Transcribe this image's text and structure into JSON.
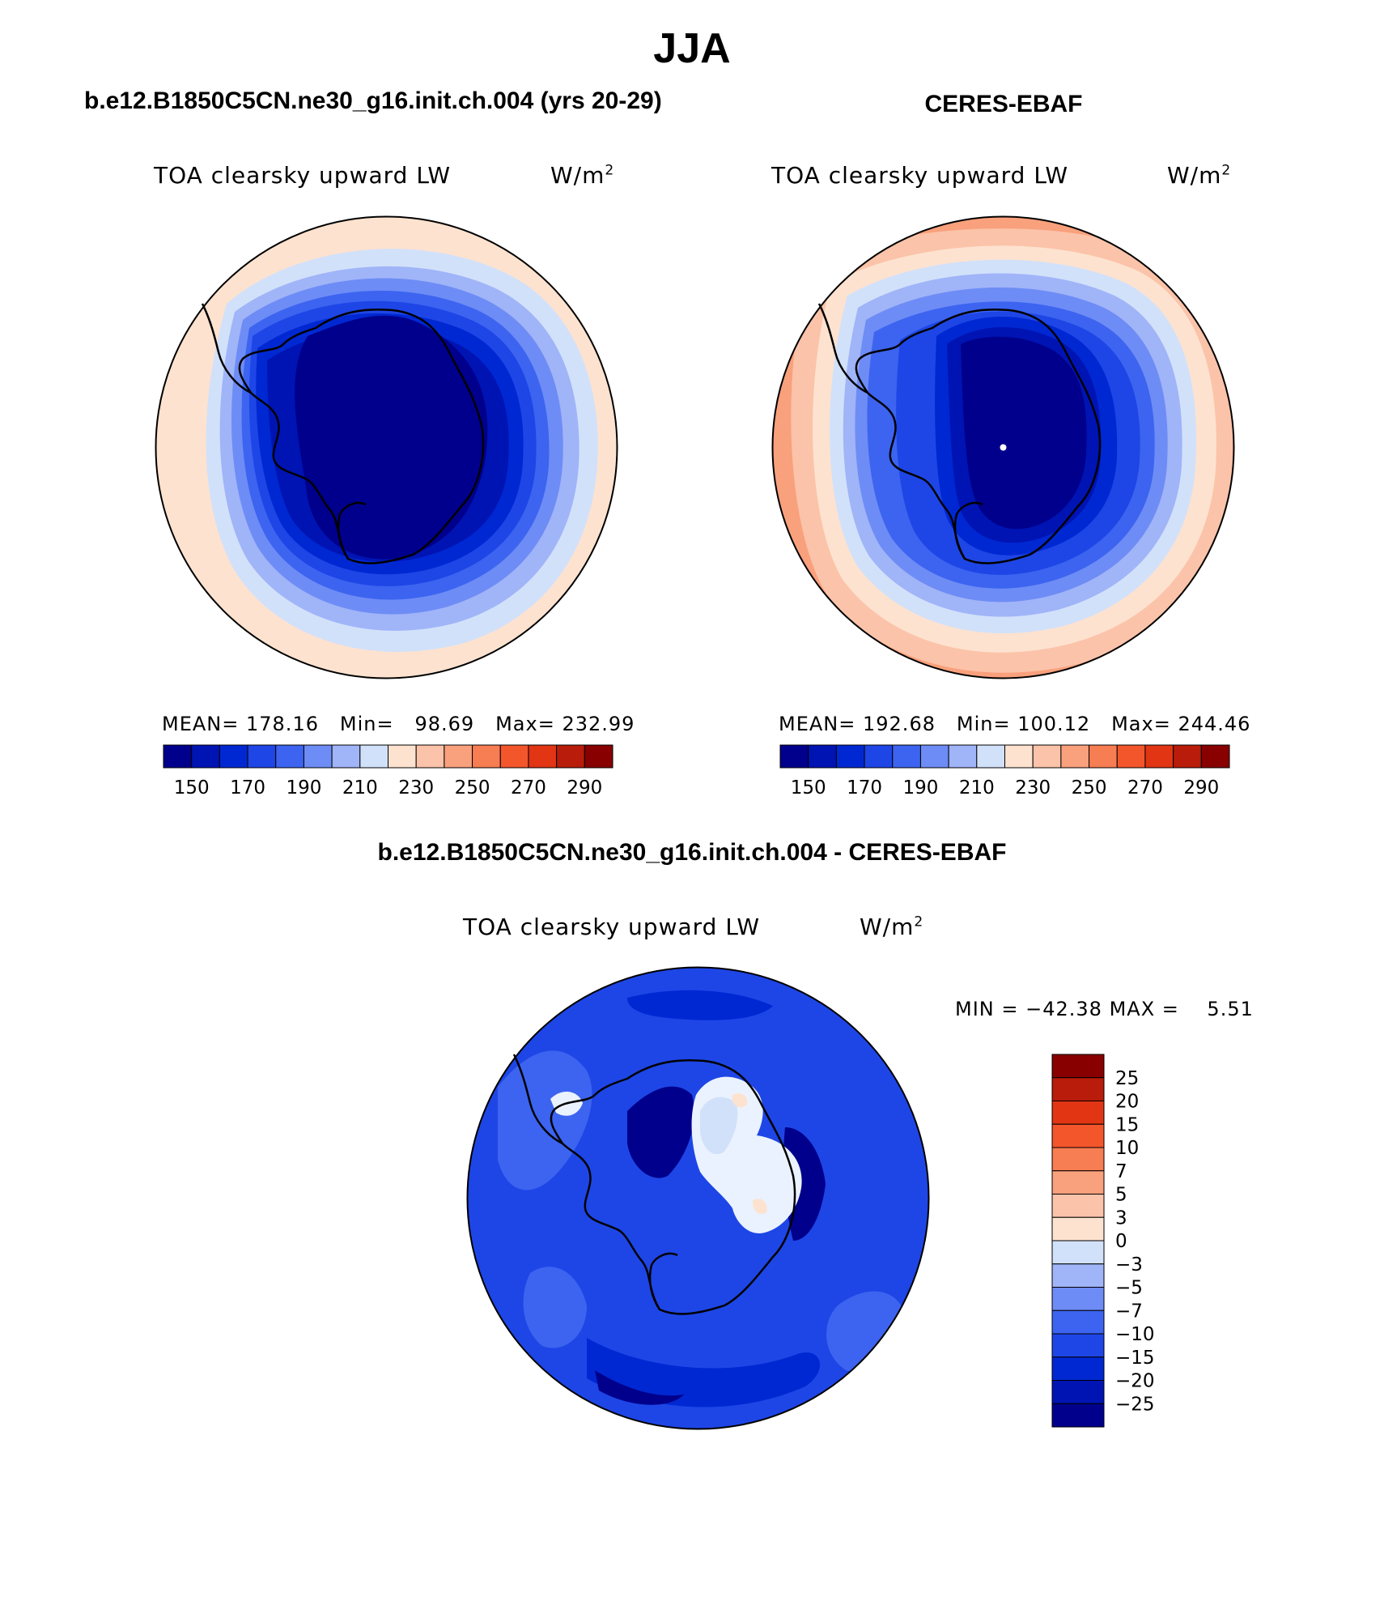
{
  "page": {
    "title": "JJA",
    "diff_title": "b.e12.B1850C5CN.ne30_g16.init.ch.004 - CERES-EBAF"
  },
  "panels": [
    {
      "title": "b.e12.B1850C5CN.ne30_g16.init.ch.004 (yrs 20-29)",
      "variable": "TOA clearsky upward LW",
      "units_base": "W/m",
      "units_exp": "2",
      "stats": {
        "mean_label": "MEAN=",
        "mean": "178.16",
        "min_label": "Min=",
        "min": "98.69",
        "max_label": "Max=",
        "max": "232.99"
      }
    },
    {
      "title": "CERES-EBAF",
      "variable": "TOA clearsky upward LW",
      "units_base": "W/m",
      "units_exp": "2",
      "stats": {
        "mean_label": "MEAN=",
        "mean": "192.68",
        "min_label": "Min=",
        "min": "100.12",
        "max_label": "Max=",
        "max": "244.46"
      }
    }
  ],
  "diff_panel": {
    "variable": "TOA clearsky upward LW",
    "units_base": "W/m",
    "units_exp": "2",
    "minmax": {
      "min_label": "MIN =",
      "min": "−42.38",
      "max_label": "MAX =",
      "max": "5.51"
    }
  },
  "colorbars": {
    "abs_colors": [
      "#00008c",
      "#0014b4",
      "#0028d2",
      "#1e46e6",
      "#3c64f0",
      "#6e8cf5",
      "#a0b4f8",
      "#d2e1fa",
      "#fde2cf",
      "#fbc3a9",
      "#f9a07c",
      "#f77d52",
      "#f4562c",
      "#e13514",
      "#b91c0a",
      "#880000"
    ],
    "abs_ticks": [
      "150",
      "170",
      "190",
      "210",
      "230",
      "250",
      "270",
      "290"
    ],
    "diff_colors": [
      "#00008c",
      "#0014b4",
      "#0028d2",
      "#1e46e6",
      "#3c64f0",
      "#6e8cf5",
      "#a0b4f8",
      "#d2e1fa",
      "#fde2cf",
      "#fbc3a9",
      "#f9a07c",
      "#f77d52",
      "#f4562c",
      "#e13514",
      "#b91c0a",
      "#880000"
    ],
    "diff_ticks": [
      "25",
      "20",
      "15",
      "10",
      "7",
      "5",
      "3",
      "0",
      "−3",
      "−5",
      "−7",
      "−10",
      "−15",
      "−20",
      "−25"
    ]
  },
  "map_fill_colors": {
    "model": [
      "#fde2cf",
      "#d2e1fa",
      "#a0b4f8",
      "#6e8cf5",
      "#3c64f0",
      "#1e46e6",
      "#0028d2",
      "#0014b4",
      "#00008c"
    ],
    "obs": [
      "#f9a07c",
      "#fbc3a9",
      "#fde2cf",
      "#d2e1fa",
      "#a0b4f8",
      "#6e8cf5",
      "#3c64f0",
      "#1e46e6",
      "#0028d2",
      "#0014b4",
      "#00008c"
    ],
    "diff": {
      "base": "#1e46e6",
      "dark": "#0028d2",
      "darker": "#00008c",
      "light": "#3c64f0",
      "white": "#eaf2ff",
      "pale": "#d2e1fa",
      "peach": "#fde2cf"
    }
  }
}
